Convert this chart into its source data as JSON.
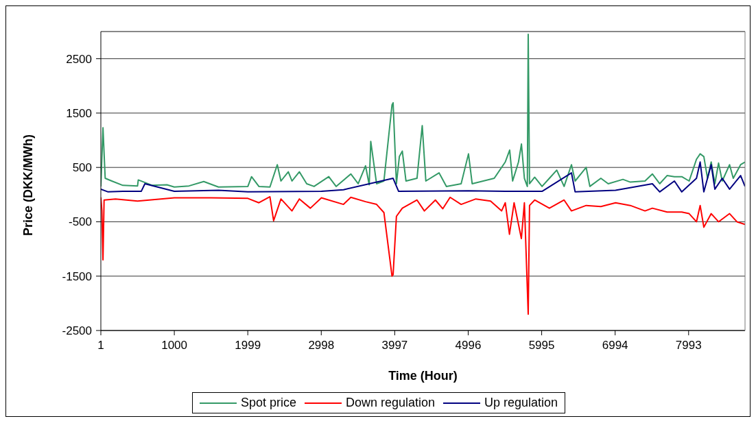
{
  "chart_data": {
    "type": "line",
    "xlabel": "Time (Hour)",
    "ylabel": "Price (DKK/MWh)",
    "xlim": [
      1,
      8760
    ],
    "xticks": [
      1,
      1000,
      1999,
      2998,
      3997,
      4996,
      5995,
      6994,
      7993
    ],
    "ylim": [
      -2500,
      3000
    ],
    "yticks": [
      -2500,
      -1500,
      -500,
      500,
      1500,
      2500
    ],
    "grid": "y",
    "legend": "bottom",
    "marker": "none",
    "line_style": "solid",
    "series": [
      {
        "name": "Spot price",
        "color": "#339966",
        "x": [
          1,
          30,
          60,
          150,
          300,
          500,
          510,
          700,
          900,
          1000,
          1200,
          1400,
          1600,
          2000,
          2050,
          2150,
          2300,
          2400,
          2450,
          2550,
          2600,
          2700,
          2800,
          2900,
          3100,
          3200,
          3400,
          3500,
          3600,
          3650,
          3671,
          3750,
          3850,
          3960,
          3975,
          4020,
          4060,
          4100,
          4150,
          4300,
          4371,
          4420,
          4600,
          4700,
          4900,
          5000,
          5050,
          5200,
          5350,
          5500,
          5560,
          5600,
          5680,
          5720,
          5760,
          5800,
          5812,
          5830,
          5900,
          6000,
          6100,
          6200,
          6300,
          6400,
          6450,
          6600,
          6650,
          6800,
          6900,
          7100,
          7200,
          7400,
          7500,
          7600,
          7700,
          7800,
          7900,
          8000,
          8100,
          8150,
          8200,
          8250,
          8300,
          8350,
          8400,
          8450,
          8550,
          8600,
          8700,
          8760
        ],
        "values": [
          150,
          1230,
          300,
          250,
          170,
          160,
          270,
          170,
          180,
          140,
          160,
          240,
          140,
          150,
          330,
          150,
          140,
          550,
          250,
          420,
          250,
          420,
          200,
          150,
          330,
          150,
          380,
          200,
          530,
          180,
          980,
          200,
          250,
          1650,
          1690,
          200,
          700,
          800,
          250,
          300,
          1270,
          250,
          400,
          150,
          200,
          750,
          200,
          250,
          300,
          600,
          820,
          250,
          600,
          930,
          300,
          150,
          2950,
          200,
          320,
          150,
          300,
          450,
          150,
          550,
          250,
          500,
          150,
          300,
          200,
          280,
          230,
          250,
          380,
          200,
          350,
          330,
          330,
          250,
          650,
          750,
          700,
          300,
          600,
          200,
          580,
          250,
          550,
          300,
          550,
          600
        ]
      },
      {
        "name": "Down regulation",
        "color": "#ff0000",
        "x": [
          1,
          15,
          30,
          45,
          200,
          500,
          1000,
          1500,
          2000,
          2150,
          2300,
          2350,
          2450,
          2600,
          2700,
          2850,
          3000,
          3300,
          3400,
          3600,
          3750,
          3850,
          3960,
          3975,
          4020,
          4100,
          4300,
          4400,
          4550,
          4650,
          4750,
          4900,
          5100,
          5300,
          5450,
          5500,
          5557,
          5620,
          5719,
          5760,
          5812,
          5830,
          5900,
          6100,
          6300,
          6400,
          6600,
          6800,
          7000,
          7200,
          7400,
          7500,
          7700,
          7900,
          8000,
          8100,
          8150,
          8200,
          8300,
          8400,
          8550,
          8650,
          8760
        ],
        "values": [
          -50,
          -300,
          -1200,
          -100,
          -80,
          -120,
          -60,
          -60,
          -70,
          -150,
          -40,
          -480,
          -80,
          -300,
          -80,
          -250,
          -60,
          -180,
          -50,
          -130,
          -180,
          -330,
          -1500,
          -1470,
          -400,
          -250,
          -100,
          -300,
          -100,
          -260,
          -50,
          -180,
          -80,
          -120,
          -300,
          -150,
          -730,
          -150,
          -810,
          -150,
          -2200,
          -200,
          -100,
          -250,
          -100,
          -300,
          -200,
          -220,
          -150,
          -200,
          -300,
          -250,
          -320,
          -320,
          -350,
          -500,
          -200,
          -600,
          -350,
          -500,
          -350,
          -500,
          -550
        ]
      },
      {
        "name": "Up regulation",
        "color": "#000080",
        "x": [
          1,
          100,
          300,
          550,
          600,
          1000,
          1600,
          2000,
          3000,
          3300,
          3975,
          4050,
          5000,
          5500,
          6000,
          6400,
          6450,
          7000,
          7500,
          7600,
          7800,
          7900,
          8100,
          8150,
          8200,
          8300,
          8350,
          8450,
          8550,
          8700,
          8760
        ],
        "values": [
          100,
          50,
          60,
          60,
          200,
          60,
          80,
          50,
          60,
          90,
          300,
          60,
          70,
          60,
          60,
          400,
          50,
          80,
          200,
          50,
          250,
          50,
          300,
          600,
          50,
          550,
          100,
          300,
          100,
          350,
          150
        ]
      }
    ]
  }
}
